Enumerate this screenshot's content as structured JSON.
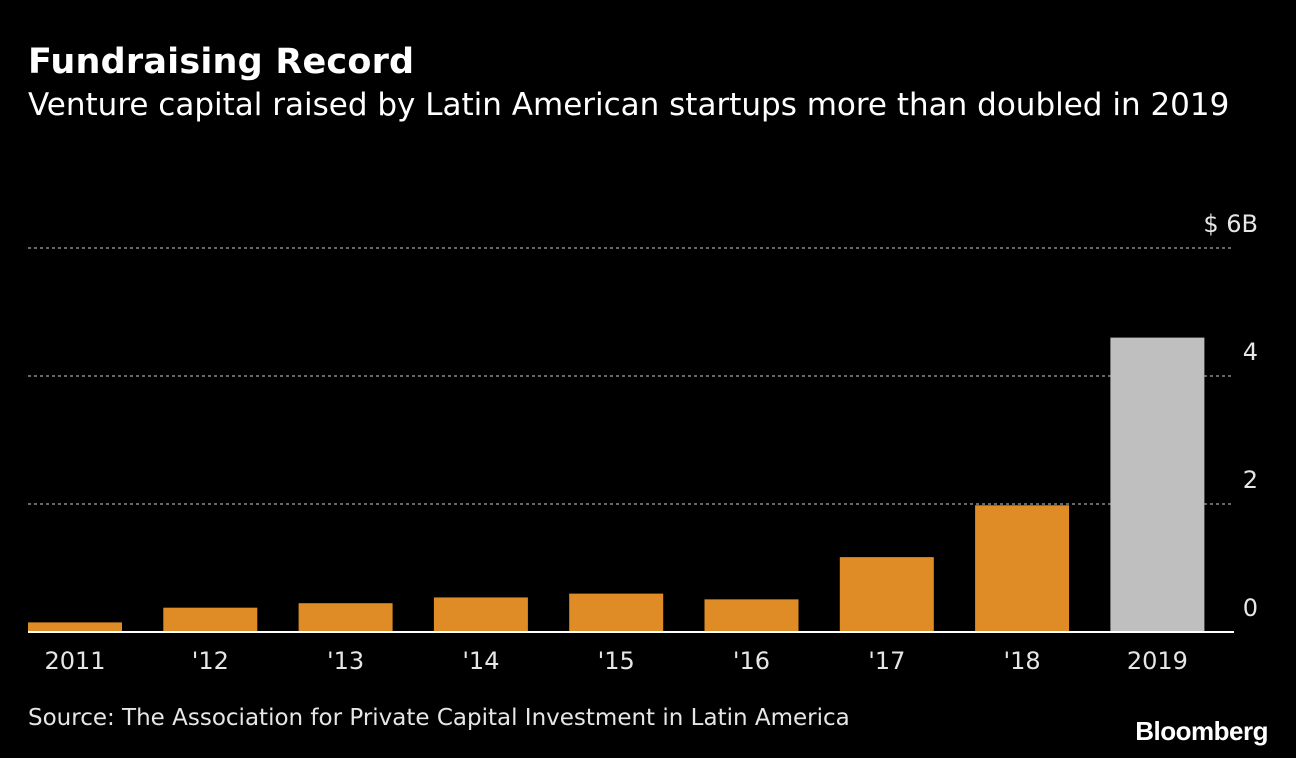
{
  "header": {
    "title": "Fundraising Record",
    "subtitle": "Venture capital raised by Latin American startups more than doubled in 2019"
  },
  "footer": {
    "source": "Source: The Association for Private Capital Investment in Latin America",
    "brand": "Bloomberg"
  },
  "colors": {
    "background": "#000000",
    "bar": "#e08c26",
    "highlight_bar": "#bfbfbf",
    "gridline": "#8a8a8a",
    "text": "#ffffff"
  },
  "chart_data": {
    "type": "bar",
    "categories": [
      "2011",
      "'12",
      "'13",
      "'14",
      "'15",
      "'16",
      "'17",
      "'18",
      "2019"
    ],
    "values": [
      0.15,
      0.38,
      0.45,
      0.54,
      0.6,
      0.51,
      1.17,
      1.98,
      4.6
    ],
    "highlight_index": 8,
    "ylim": [
      0,
      6
    ],
    "yticks": [
      0,
      2,
      4,
      6
    ],
    "ytick_labels": [
      "0",
      "2",
      "4",
      "$ 6B"
    ],
    "y_axis_position": "right",
    "grid": true,
    "xlabel": "",
    "ylabel": ""
  }
}
